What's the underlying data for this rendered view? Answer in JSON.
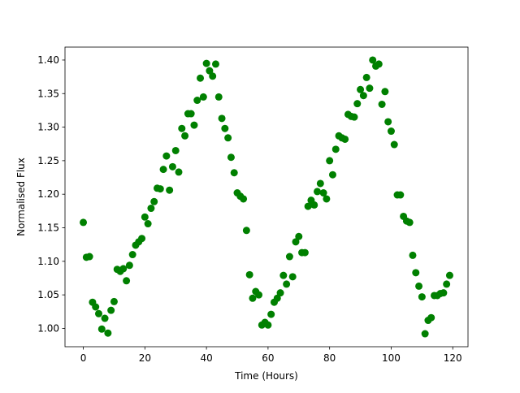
{
  "chart_data": {
    "type": "scatter",
    "xlabel": "Time (Hours)",
    "ylabel": "Normalised Flux",
    "x": [
      0,
      1,
      2,
      3,
      4,
      5,
      6,
      7,
      8,
      9,
      10,
      11,
      12,
      13,
      14,
      15,
      16,
      17,
      18,
      19,
      20,
      21,
      22,
      23,
      24,
      25,
      26,
      27,
      28,
      29,
      30,
      31,
      32,
      33,
      34,
      35,
      36,
      37,
      38,
      39,
      40,
      41,
      42,
      43,
      44,
      45,
      46,
      47,
      48,
      49,
      50,
      51,
      52,
      53,
      54,
      55,
      56,
      57,
      58,
      59,
      60,
      61,
      62,
      63,
      64,
      65,
      66,
      67,
      68,
      69,
      70,
      71,
      72,
      73,
      74,
      75,
      76,
      77,
      78,
      79,
      80,
      81,
      82,
      83,
      84,
      85,
      86,
      87,
      88,
      89,
      90,
      91,
      92,
      93,
      94,
      95,
      96,
      97,
      98,
      99,
      100,
      101,
      102,
      103,
      104,
      105,
      106,
      107,
      108,
      109,
      110,
      111,
      112,
      113,
      114,
      115,
      116,
      117,
      118,
      119
    ],
    "series": [
      {
        "color": "#008000",
        "values": [
          1.158,
          1.106,
          1.107,
          1.039,
          1.032,
          1.022,
          0.999,
          1.015,
          0.993,
          1.027,
          1.04,
          1.088,
          1.085,
          1.089,
          1.071,
          1.094,
          1.11,
          1.124,
          1.129,
          1.134,
          1.166,
          1.156,
          1.179,
          1.189,
          1.209,
          1.208,
          1.237,
          1.257,
          1.206,
          1.241,
          1.265,
          1.233,
          1.298,
          1.287,
          1.32,
          1.32,
          1.303,
          1.34,
          1.373,
          1.345,
          1.395,
          1.384,
          1.376,
          1.394,
          1.345,
          1.313,
          1.298,
          1.284,
          1.255,
          1.232,
          1.202,
          1.197,
          1.193,
          1.146,
          1.08,
          1.045,
          1.055,
          1.05,
          1.005,
          1.009,
          1.005,
          1.021,
          1.039,
          1.045,
          1.053,
          1.079,
          1.066,
          1.107,
          1.077,
          1.129,
          1.137,
          1.113,
          1.113,
          1.182,
          1.191,
          1.184,
          1.204,
          1.216,
          1.202,
          1.193,
          1.25,
          1.229,
          1.267,
          1.287,
          1.284,
          1.282,
          1.319,
          1.316,
          1.315,
          1.335,
          1.356,
          1.347,
          1.374,
          1.358,
          1.4,
          1.391,
          1.394,
          1.334,
          1.353,
          1.308,
          1.294,
          1.274,
          1.199,
          1.199,
          1.167,
          1.16,
          1.158,
          1.109,
          1.083,
          1.063,
          1.047,
          0.992,
          1.012,
          1.016,
          1.049,
          1.049,
          1.052,
          1.053,
          1.066,
          1.079
        ]
      }
    ],
    "xlim": [
      -5.95,
      124.95
    ],
    "ylim": [
      0.9727,
      1.4193
    ],
    "xticks": [
      0,
      20,
      40,
      60,
      80,
      100,
      120
    ],
    "yticks": [
      {
        "value": 1,
        "label": "1.00"
      },
      {
        "value": 1.05,
        "label": "1.05"
      },
      {
        "value": 1.1,
        "label": "1.10"
      },
      {
        "value": 1.15,
        "label": "1.15"
      },
      {
        "value": 1.2,
        "label": "1.20"
      },
      {
        "value": 1.25,
        "label": "1.25"
      },
      {
        "value": 1.3,
        "label": "1.30"
      },
      {
        "value": 1.35,
        "label": "1.35"
      },
      {
        "value": 1.4,
        "label": "1.40"
      }
    ],
    "grid": false
  }
}
